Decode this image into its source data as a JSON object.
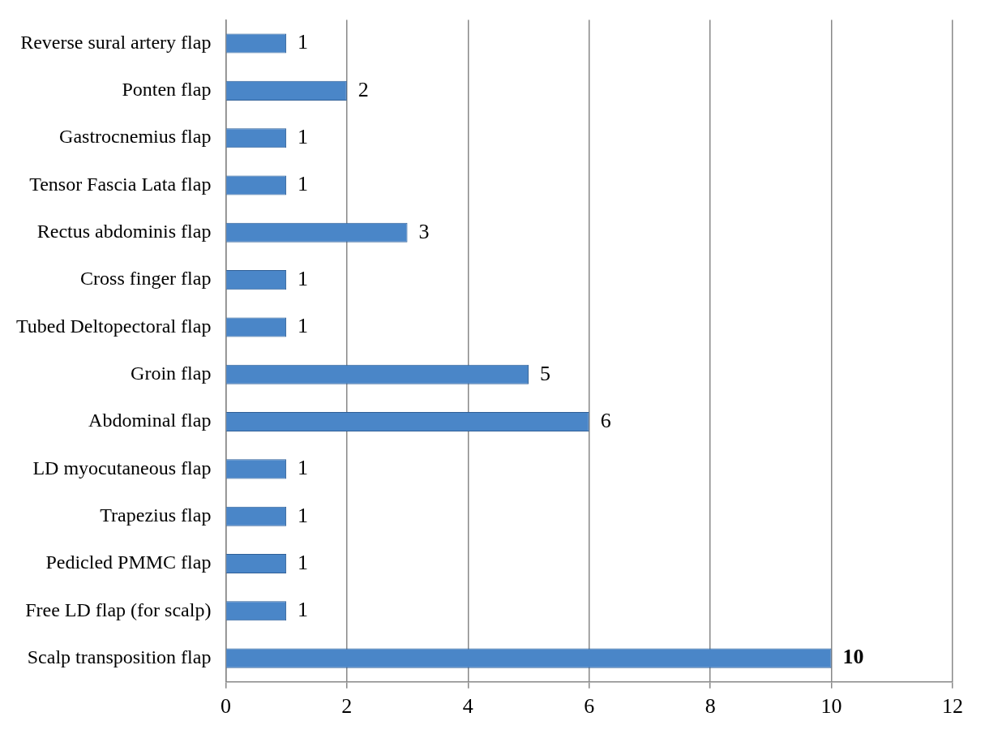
{
  "chart_data": {
    "type": "bar",
    "orientation": "horizontal",
    "categories": [
      "Reverse sural artery flap",
      "Ponten flap",
      "Gastrocnemius flap",
      "Tensor Fascia Lata flap",
      "Rectus abdominis flap",
      "Cross finger flap",
      "Tubed Deltopectoral flap",
      "Groin flap",
      "Abdominal flap",
      "LD myocutaneous flap",
      "Trapezius flap",
      "Pedicled PMMC flap",
      "Free LD flap (for scalp)",
      "Scalp transposition flap"
    ],
    "values": [
      1,
      2,
      1,
      1,
      3,
      1,
      1,
      5,
      6,
      1,
      1,
      1,
      1,
      10
    ],
    "color": "#4a86c8",
    "xlim": [
      0,
      12
    ],
    "xticks": [
      0,
      2,
      4,
      6,
      8,
      10,
      12
    ],
    "grid": "x",
    "data_labels": true,
    "legend": false
  }
}
